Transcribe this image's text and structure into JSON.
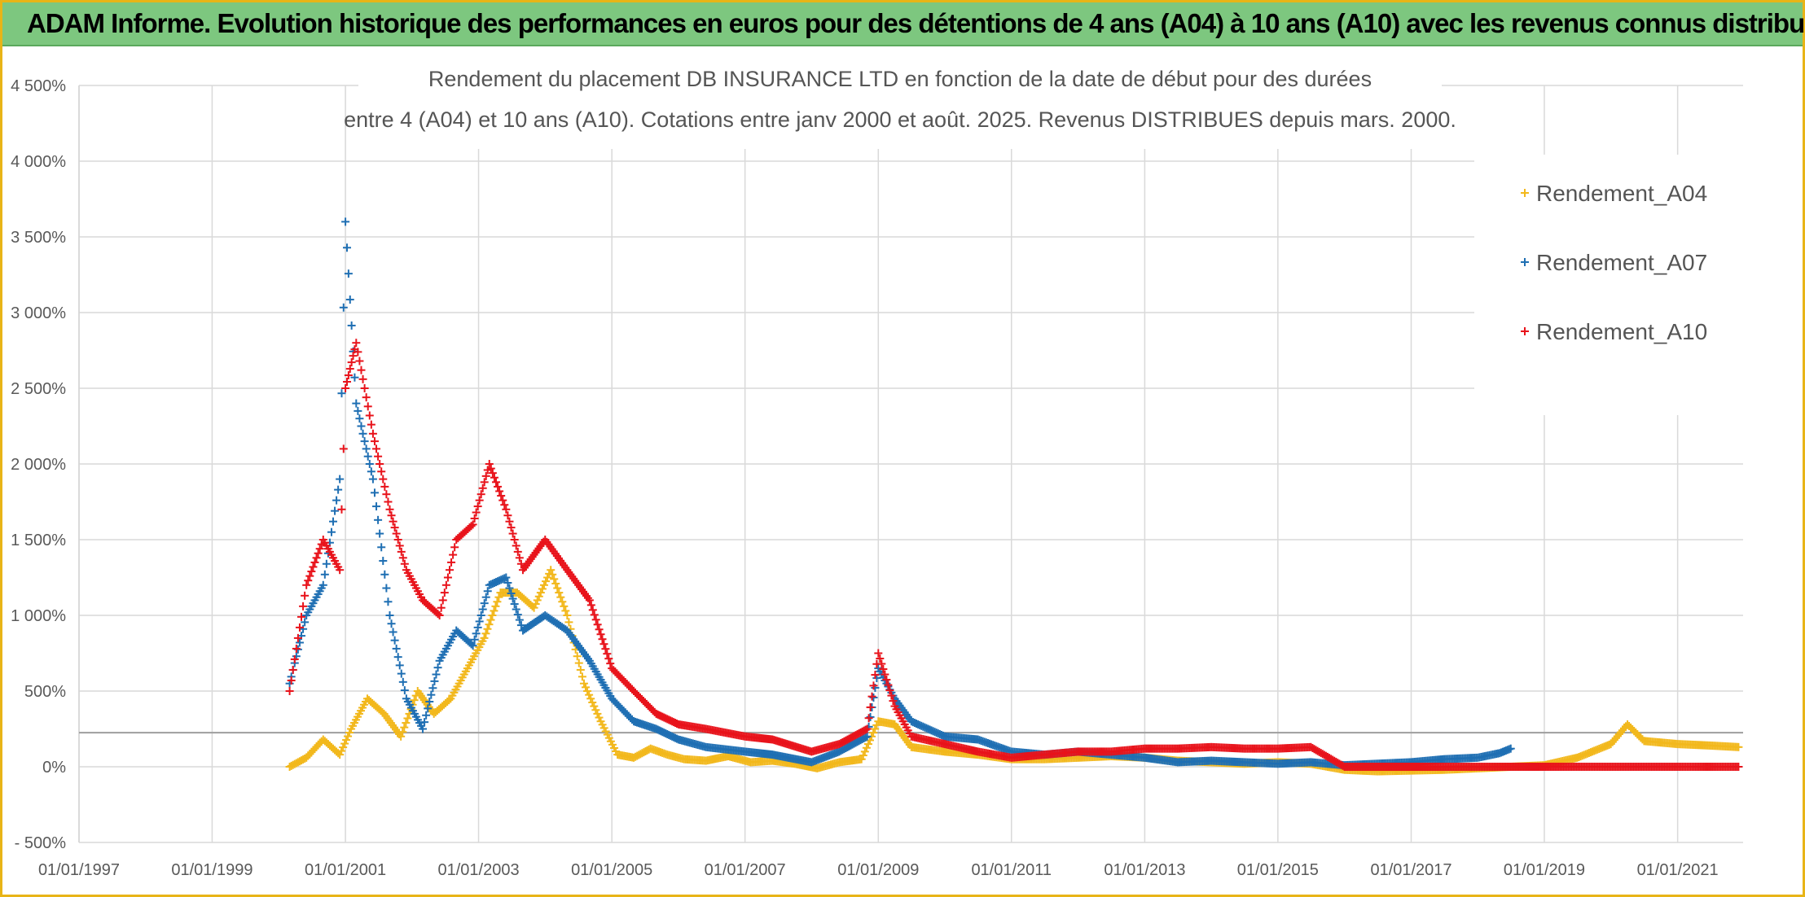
{
  "banner": {
    "title": "ADAM Informe. Evolution historique des performances en euros pour des détentions de 4 ans (A04) à 10 ans (A10) avec les revenus connus distribués"
  },
  "colors": {
    "banner_bg": "#7dc77f",
    "frame": "#e8b417",
    "A04": "#f2b81c",
    "A07": "#1f6fb3",
    "A10": "#e8131b"
  },
  "chart_data": {
    "type": "scatter",
    "title": "Rendement du placement DB INSURANCE LTD en fonction de la date de début pour des durées",
    "subtitle": "entre 4 (A04) et 10 ans (A10). Cotations entre janv 2000 et août. 2025. Revenus DISTRIBUES depuis mars. 2000.",
    "xlabel": "",
    "ylabel": "",
    "xlim": [
      "1997-01-01",
      "2021-12-31"
    ],
    "ylim": [
      -500,
      4500
    ],
    "x_ticks": [
      "01/01/1997",
      "01/01/1999",
      "01/01/2001",
      "01/01/2003",
      "01/01/2005",
      "01/01/2007",
      "01/01/2009",
      "01/01/2011",
      "01/01/2013",
      "01/01/2015",
      "01/01/2017",
      "01/01/2019",
      "01/01/2021"
    ],
    "y_ticks": [
      "4 500%",
      "4 000%",
      "3 500%",
      "3 000%",
      "2 500%",
      "2 000%",
      "1 500%",
      "1 000%",
      "500%",
      "0%",
      "- 500%"
    ],
    "grid": true,
    "legend": "top-right",
    "marker": "+",
    "series": [
      {
        "name": "Rendement_A04",
        "color": "#f2b81c",
        "points": [
          [
            "2000-03-01",
            0
          ],
          [
            "2000-06-01",
            60
          ],
          [
            "2000-09-01",
            180
          ],
          [
            "2000-12-01",
            80
          ],
          [
            "2001-02-01",
            250
          ],
          [
            "2001-05-01",
            450
          ],
          [
            "2001-08-01",
            350
          ],
          [
            "2001-11-01",
            200
          ],
          [
            "2002-02-01",
            500
          ],
          [
            "2002-05-01",
            350
          ],
          [
            "2002-08-01",
            450
          ],
          [
            "2002-11-01",
            650
          ],
          [
            "2003-02-01",
            850
          ],
          [
            "2003-05-01",
            1150
          ],
          [
            "2003-08-01",
            1150
          ],
          [
            "2003-11-01",
            1050
          ],
          [
            "2004-02-01",
            1300
          ],
          [
            "2004-05-01",
            1000
          ],
          [
            "2004-08-01",
            550
          ],
          [
            "2004-11-01",
            300
          ],
          [
            "2005-02-01",
            80
          ],
          [
            "2005-05-01",
            60
          ],
          [
            "2005-08-01",
            120
          ],
          [
            "2005-11-01",
            80
          ],
          [
            "2006-02-01",
            50
          ],
          [
            "2006-06-01",
            40
          ],
          [
            "2006-10-01",
            70
          ],
          [
            "2007-02-01",
            30
          ],
          [
            "2007-06-01",
            40
          ],
          [
            "2007-10-01",
            20
          ],
          [
            "2008-02-01",
            -10
          ],
          [
            "2008-06-01",
            30
          ],
          [
            "2008-10-01",
            50
          ],
          [
            "2009-01-01",
            300
          ],
          [
            "2009-04-01",
            280
          ],
          [
            "2009-07-01",
            130
          ],
          [
            "2010-01-01",
            100
          ],
          [
            "2010-07-01",
            80
          ],
          [
            "2011-01-01",
            50
          ],
          [
            "2011-07-01",
            50
          ],
          [
            "2012-01-01",
            60
          ],
          [
            "2012-07-01",
            70
          ],
          [
            "2013-01-01",
            60
          ],
          [
            "2013-07-01",
            40
          ],
          [
            "2014-01-01",
            30
          ],
          [
            "2014-07-01",
            20
          ],
          [
            "2015-01-01",
            30
          ],
          [
            "2015-07-01",
            20
          ],
          [
            "2016-01-01",
            -20
          ],
          [
            "2016-07-01",
            -30
          ],
          [
            "2017-01-01",
            -25
          ],
          [
            "2017-07-01",
            -20
          ],
          [
            "2018-01-01",
            -10
          ],
          [
            "2018-07-01",
            0
          ],
          [
            "2019-01-01",
            10
          ],
          [
            "2019-07-01",
            60
          ],
          [
            "2020-01-01",
            150
          ],
          [
            "2020-04-01",
            280
          ],
          [
            "2020-07-01",
            170
          ],
          [
            "2021-01-01",
            150
          ],
          [
            "2021-07-01",
            140
          ],
          [
            "2021-12-01",
            130
          ]
        ]
      },
      {
        "name": "Rendement_A07",
        "color": "#1f6fb3",
        "points": [
          [
            "2000-03-01",
            550
          ],
          [
            "2000-06-01",
            1000
          ],
          [
            "2000-09-01",
            1200
          ],
          [
            "2000-12-01",
            1900
          ],
          [
            "2001-01-01",
            3600
          ],
          [
            "2001-03-01",
            2400
          ],
          [
            "2001-06-01",
            1900
          ],
          [
            "2001-09-01",
            1000
          ],
          [
            "2001-12-01",
            450
          ],
          [
            "2002-03-01",
            250
          ],
          [
            "2002-06-01",
            700
          ],
          [
            "2002-09-01",
            900
          ],
          [
            "2002-12-01",
            800
          ],
          [
            "2003-03-01",
            1200
          ],
          [
            "2003-06-01",
            1250
          ],
          [
            "2003-09-01",
            900
          ],
          [
            "2004-01-01",
            1000
          ],
          [
            "2004-05-01",
            900
          ],
          [
            "2004-09-01",
            700
          ],
          [
            "2005-01-01",
            450
          ],
          [
            "2005-05-01",
            300
          ],
          [
            "2005-09-01",
            250
          ],
          [
            "2006-01-01",
            180
          ],
          [
            "2006-06-01",
            130
          ],
          [
            "2007-01-01",
            100
          ],
          [
            "2007-06-01",
            80
          ],
          [
            "2008-01-01",
            30
          ],
          [
            "2008-06-01",
            100
          ],
          [
            "2008-11-01",
            200
          ],
          [
            "2009-01-01",
            650
          ],
          [
            "2009-04-01",
            450
          ],
          [
            "2009-07-01",
            300
          ],
          [
            "2010-01-01",
            200
          ],
          [
            "2010-07-01",
            180
          ],
          [
            "2011-01-01",
            100
          ],
          [
            "2011-07-01",
            80
          ],
          [
            "2012-01-01",
            100
          ],
          [
            "2012-07-01",
            80
          ],
          [
            "2013-01-01",
            60
          ],
          [
            "2013-07-01",
            30
          ],
          [
            "2014-01-01",
            40
          ],
          [
            "2014-07-01",
            30
          ],
          [
            "2015-01-01",
            20
          ],
          [
            "2015-07-01",
            30
          ],
          [
            "2016-01-01",
            10
          ],
          [
            "2016-07-01",
            20
          ],
          [
            "2017-01-01",
            30
          ],
          [
            "2017-07-01",
            50
          ],
          [
            "2018-01-01",
            60
          ],
          [
            "2018-05-01",
            90
          ],
          [
            "2018-07-01",
            120
          ]
        ]
      },
      {
        "name": "Rendement_A10",
        "color": "#e8131b",
        "points": [
          [
            "2000-03-01",
            500
          ],
          [
            "2000-06-01",
            1200
          ],
          [
            "2000-09-01",
            1500
          ],
          [
            "2000-12-01",
            1300
          ],
          [
            "2001-01-01",
            2500
          ],
          [
            "2001-03-01",
            2800
          ],
          [
            "2001-06-01",
            2200
          ],
          [
            "2001-09-01",
            1700
          ],
          [
            "2001-12-01",
            1300
          ],
          [
            "2002-03-01",
            1100
          ],
          [
            "2002-06-01",
            1000
          ],
          [
            "2002-09-01",
            1500
          ],
          [
            "2002-12-01",
            1600
          ],
          [
            "2003-03-01",
            2000
          ],
          [
            "2003-06-01",
            1700
          ],
          [
            "2003-09-01",
            1300
          ],
          [
            "2004-01-01",
            1500
          ],
          [
            "2004-05-01",
            1300
          ],
          [
            "2004-09-01",
            1100
          ],
          [
            "2005-01-01",
            650
          ],
          [
            "2005-05-01",
            500
          ],
          [
            "2005-09-01",
            350
          ],
          [
            "2006-01-01",
            280
          ],
          [
            "2006-06-01",
            250
          ],
          [
            "2007-01-01",
            200
          ],
          [
            "2007-06-01",
            180
          ],
          [
            "2008-01-01",
            100
          ],
          [
            "2008-06-01",
            150
          ],
          [
            "2008-11-01",
            250
          ],
          [
            "2009-01-01",
            750
          ],
          [
            "2009-04-01",
            400
          ],
          [
            "2009-07-01",
            200
          ],
          [
            "2010-01-01",
            150
          ],
          [
            "2010-07-01",
            100
          ],
          [
            "2011-01-01",
            60
          ],
          [
            "2011-07-01",
            80
          ],
          [
            "2012-01-01",
            100
          ],
          [
            "2012-07-01",
            100
          ],
          [
            "2013-01-01",
            120
          ],
          [
            "2013-07-01",
            120
          ],
          [
            "2014-01-01",
            130
          ],
          [
            "2014-07-01",
            120
          ],
          [
            "2015-01-01",
            120
          ],
          [
            "2015-07-01",
            130
          ],
          [
            "2016-01-01",
            0
          ],
          [
            "2017-01-01",
            0
          ],
          [
            "2018-01-01",
            0
          ],
          [
            "2019-01-01",
            0
          ],
          [
            "2020-01-01",
            0
          ],
          [
            "2021-01-01",
            0
          ],
          [
            "2021-12-01",
            0
          ]
        ]
      }
    ]
  }
}
